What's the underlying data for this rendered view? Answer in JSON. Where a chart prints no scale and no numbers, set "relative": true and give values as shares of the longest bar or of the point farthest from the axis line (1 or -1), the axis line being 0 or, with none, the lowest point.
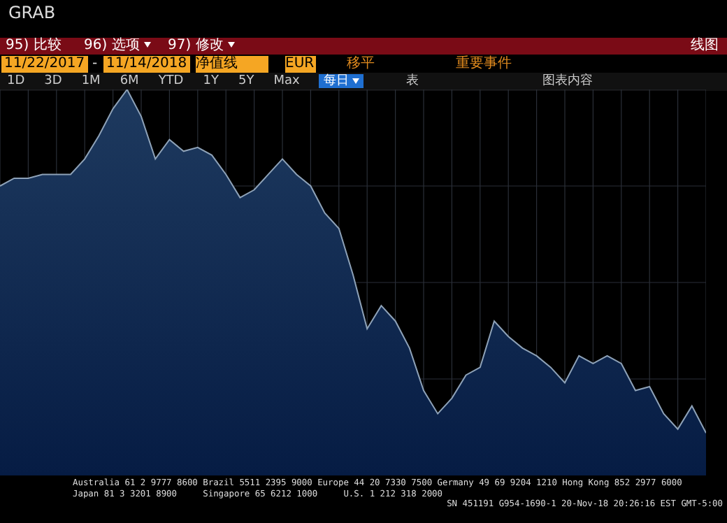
{
  "chart_data": {
    "type": "area",
    "title": "GRAB",
    "relative": true,
    "grid": true,
    "legend": false,
    "categories": [
      null,
      null,
      null,
      null,
      null,
      null,
      null,
      null,
      null,
      null,
      null,
      null,
      null,
      null,
      null,
      null,
      null,
      null,
      null,
      null,
      null,
      null,
      null,
      null,
      null,
      null,
      null,
      null,
      null,
      null,
      null,
      null,
      null,
      null,
      null,
      null,
      null,
      null,
      null,
      null,
      null,
      null,
      null,
      null,
      null,
      null,
      null,
      null,
      null,
      null,
      null
    ],
    "series": [
      {
        "color": "#1e3a5f",
        "values": [
          0.75,
          0.77,
          0.77,
          0.78,
          0.78,
          0.78,
          0.82,
          0.88,
          0.95,
          1.0,
          0.93,
          0.82,
          0.87,
          0.84,
          0.85,
          0.83,
          0.78,
          0.72,
          0.74,
          0.78,
          0.82,
          0.78,
          0.75,
          0.68,
          0.64,
          0.52,
          0.38,
          0.44,
          0.4,
          0.33,
          0.22,
          0.16,
          0.2,
          0.26,
          0.28,
          0.4,
          0.36,
          0.33,
          0.31,
          0.28,
          0.24,
          0.31,
          0.29,
          0.31,
          0.29,
          0.22,
          0.23,
          0.16,
          0.12,
          0.18,
          0.11
        ]
      }
    ],
    "annotations": [
      "95) 比较",
      "96) 选项",
      "97) 修改",
      "线图",
      "11/22/2017",
      "-",
      "11/14/2018",
      "净值线",
      "EUR",
      "移平",
      "重要事件",
      "1D",
      "3D",
      "1M",
      "6M",
      "YTD",
      "1Y",
      "5Y",
      "Max",
      "每日",
      "表",
      "图表内容",
      "Australia 61 2 9777 8600 Brazil 5511 2395 9000 Europe 44 20 7330 7500 Germany 49 69 9204 1210 Hong Kong 852 2977 6000",
      "Japan 81 3 3201 8900     Singapore 65 6212 1000     U.S. 1 212 318 2000",
      "SN 451191 G954-1690-1 20-Nov-18 20:26:16 EST GMT-5:00"
    ]
  }
}
